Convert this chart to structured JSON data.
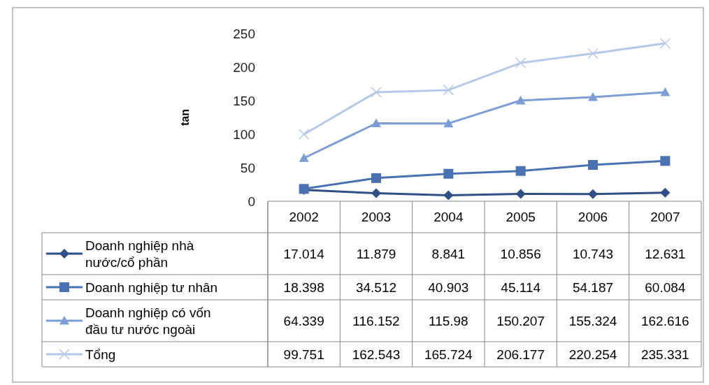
{
  "chart_data": {
    "type": "line",
    "ylabel": "tan",
    "categories": [
      "2002",
      "2003",
      "2004",
      "2005",
      "2006",
      "2007"
    ],
    "series": [
      {
        "name": "Doanh nghiệp nhà nước/cổ phần",
        "color": "#2f4f85",
        "marker": "diamond",
        "values": [
          17.014,
          11.879,
          8.841,
          10.856,
          10.743,
          12.631
        ]
      },
      {
        "name": "Doanh nghiệp tư nhân",
        "color": "#4a72b2",
        "marker": "square",
        "values": [
          18.398,
          34.512,
          40.903,
          45.114,
          54.187,
          60.084
        ]
      },
      {
        "name": "Doanh nghiệp có vốn đầu tư nước ngoài",
        "color": "#7d9ed4",
        "marker": "triangle",
        "values": [
          64.339,
          116.152,
          115.98,
          150.207,
          155.324,
          162.616
        ]
      },
      {
        "name": "Tổng",
        "color": "#b7c8e6",
        "marker": "cross",
        "values": [
          99.751,
          162.543,
          165.724,
          206.177,
          220.254,
          235.331
        ]
      }
    ],
    "ylim": [
      0,
      250
    ],
    "yticks": [
      0,
      50,
      100,
      150,
      200,
      250
    ],
    "grid": false,
    "legend": "bottom",
    "data_labels": true
  }
}
